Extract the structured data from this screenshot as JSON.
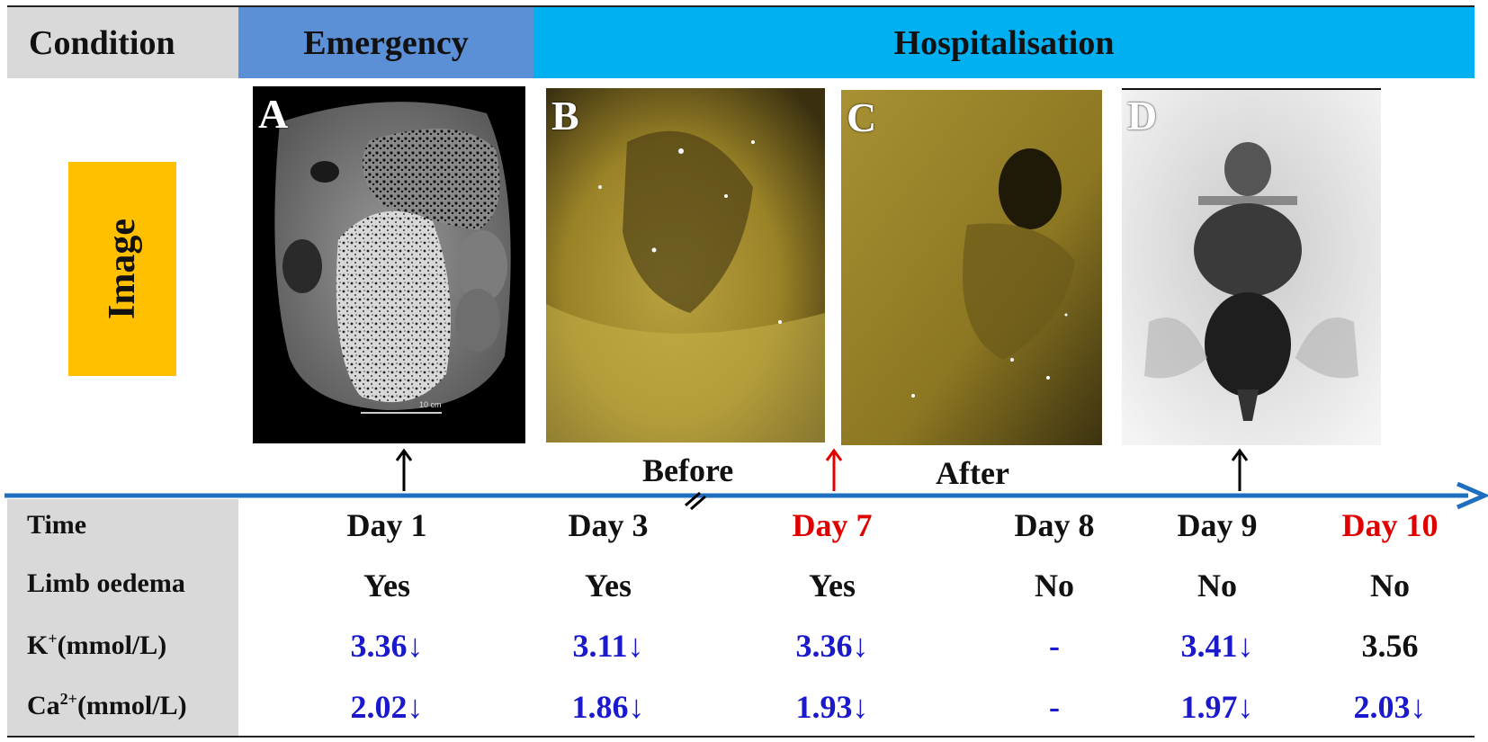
{
  "header": {
    "condition": "Condition",
    "emergency": "Emergency",
    "hospitalisation": "Hospitalisation"
  },
  "image_label": "Image",
  "panels": {
    "a": {
      "letter": "A",
      "scale": "10 cm"
    },
    "b": {
      "letter": "B"
    },
    "c": {
      "letter": "C"
    },
    "d": {
      "letter": "D"
    }
  },
  "timeline": {
    "before": "Before",
    "after": "After",
    "arrow_color_black": "#000000",
    "arrow_color_red": "#e00000",
    "axis_color": "#1f6fc0"
  },
  "rows": {
    "time_label": "Time",
    "oedema_label": "Limb oedema",
    "k_label_main": "K",
    "k_label_sup": "+",
    "k_label_unit": "(mmol/L)",
    "ca_label_main": "Ca",
    "ca_label_sup": "2+",
    "ca_label_unit": "(mmol/L)"
  },
  "days": [
    {
      "time": "Day 1",
      "time_color": "black",
      "oedema": "Yes",
      "k": "3.36↓",
      "k_color": "blue",
      "ca": "2.02↓",
      "ca_color": "blue"
    },
    {
      "time": "Day 3",
      "time_color": "black",
      "oedema": "Yes",
      "k": "3.11↓",
      "k_color": "blue",
      "ca": "1.86↓",
      "ca_color": "blue"
    },
    {
      "time": "Day 7",
      "time_color": "red",
      "oedema": "Yes",
      "k": "3.36↓",
      "k_color": "blue",
      "ca": "1.93↓",
      "ca_color": "blue"
    },
    {
      "time": "Day 8",
      "time_color": "black",
      "oedema": "No",
      "k": "-",
      "k_color": "blue",
      "ca": "-",
      "ca_color": "blue"
    },
    {
      "time": "Day 9",
      "time_color": "black",
      "oedema": "No",
      "k": "3.41↓",
      "k_color": "blue",
      "ca": "1.97↓",
      "ca_color": "blue"
    },
    {
      "time": "Day 10",
      "time_color": "red",
      "oedema": "No",
      "k": "3.56",
      "k_color": "black",
      "ca": "2.03↓",
      "ca_color": "blue"
    }
  ]
}
